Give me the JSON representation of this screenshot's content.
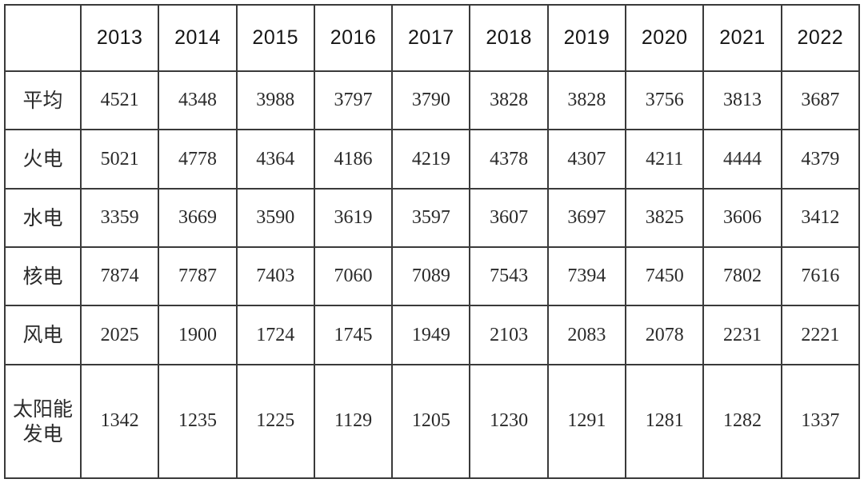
{
  "chart_data": {
    "type": "table",
    "corner_label": "",
    "categories": [
      "2013",
      "2014",
      "2015",
      "2016",
      "2017",
      "2018",
      "2019",
      "2020",
      "2021",
      "2022"
    ],
    "series": [
      {
        "name": "平均",
        "values": [
          4521,
          4348,
          3988,
          3797,
          3790,
          3828,
          3828,
          3756,
          3813,
          3687
        ]
      },
      {
        "name": "火电",
        "values": [
          5021,
          4778,
          4364,
          4186,
          4219,
          4378,
          4307,
          4211,
          4444,
          4379
        ]
      },
      {
        "name": "水电",
        "values": [
          3359,
          3669,
          3590,
          3619,
          3597,
          3607,
          3697,
          3825,
          3606,
          3412
        ]
      },
      {
        "name": "核电",
        "values": [
          7874,
          7787,
          7403,
          7060,
          7089,
          7543,
          7394,
          7450,
          7802,
          7616
        ]
      },
      {
        "name": "风电",
        "values": [
          2025,
          1900,
          1724,
          1745,
          1949,
          2103,
          2083,
          2078,
          2231,
          2221
        ]
      },
      {
        "name": "太阳能发电",
        "values": [
          1342,
          1235,
          1225,
          1129,
          1205,
          1230,
          1291,
          1281,
          1282,
          1337
        ]
      }
    ],
    "layout": {
      "grid": true,
      "header_row": "years",
      "label_column": "categories"
    }
  },
  "colors": {
    "border": "#3a3a3a",
    "header_text": "#161616",
    "cell_text": "#2a2a2a",
    "background": "#ffffff"
  }
}
